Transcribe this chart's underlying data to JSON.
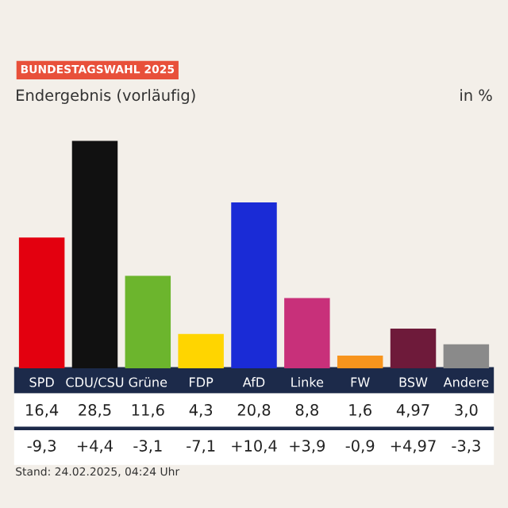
{
  "chart_data": {
    "type": "bar",
    "title": "BUNDESTAGSWAHL 2025",
    "subtitle": "Endergebnis (vorläufig)",
    "ylabel": "in %",
    "categories": [
      "SPD",
      "CDU/CSU",
      "Grüne",
      "FDP",
      "AfD",
      "Linke",
      "FW",
      "BSW",
      "Andere"
    ],
    "values": [
      16.4,
      28.5,
      11.6,
      4.3,
      20.8,
      8.8,
      1.6,
      4.97,
      3.0
    ],
    "value_labels": [
      "16,4",
      "28,5",
      "11,6",
      "4,3",
      "20,8",
      "8,8",
      "1,6",
      "4,97",
      "3,0"
    ],
    "colors": [
      "#e3000f",
      "#111111",
      "#6cb52d",
      "#ffd500",
      "#1a2bd6",
      "#c8307a",
      "#f7941d",
      "#6e1a3a",
      "#8a8a8a"
    ],
    "annotations": [
      "-9,3",
      "+4,4",
      "-3,1",
      "-7,1",
      "+10,4",
      "+3,9",
      "-0,9",
      "+4,97",
      "-3,3",
      "Stand: 24.02.2025, 04:24 Uhr"
    ],
    "grid": false,
    "legend": false
  }
}
